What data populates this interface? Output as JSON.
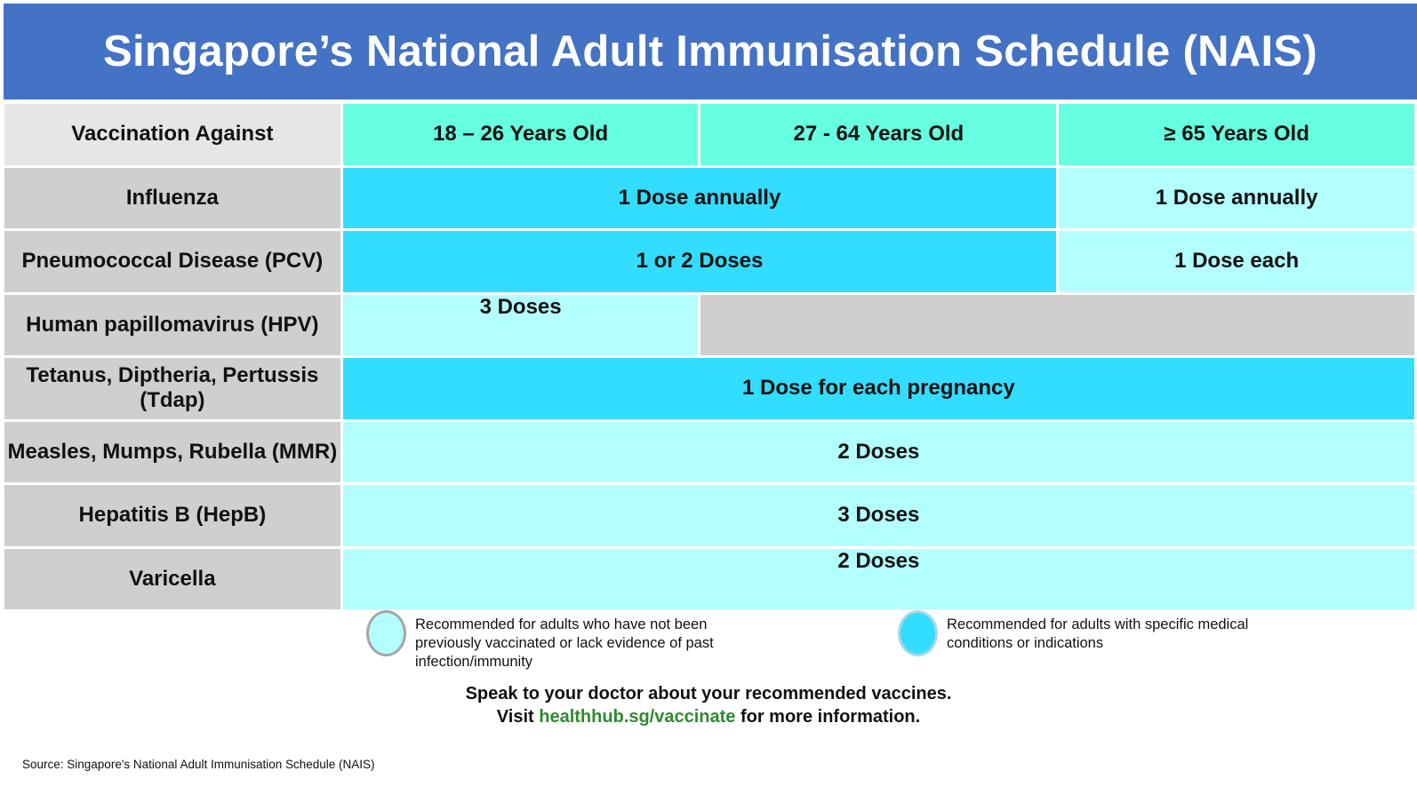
{
  "title": "Singapore’s National Adult Immunisation Schedule (NAIS)",
  "table": {
    "header": {
      "label": "Vaccination Against",
      "age_groups": [
        "18 – 26 Years Old",
        "27 - 64 Years Old",
        "≥ 65 Years Old"
      ]
    },
    "rows": [
      {
        "vaccine": "Influenza",
        "cells": [
          "1 Dose annually",
          "1 Dose annually"
        ]
      },
      {
        "vaccine": "Pneumococcal Disease (PCV)",
        "cells": [
          "1 or 2 Doses",
          "1 Dose each"
        ]
      },
      {
        "vaccine": "Human papillomavirus (HPV)",
        "cells": [
          "3 Doses"
        ]
      },
      {
        "vaccine": "Tetanus, Diptheria, Pertussis (Tdap)",
        "cells": [
          "1 Dose for each pregnancy"
        ]
      },
      {
        "vaccine": "Measles, Mumps, Rubella (MMR)",
        "cells": [
          "2 Doses"
        ]
      },
      {
        "vaccine": "Hepatitis B (HepB)",
        "cells": [
          "3 Doses"
        ]
      },
      {
        "vaccine": "Varicella",
        "cells": [
          "2 Doses"
        ]
      }
    ]
  },
  "legend": [
    {
      "color": "#B3FFFF",
      "text": "Recommended for adults who have not been previously vaccinated or lack evidence of past infection/immunity"
    },
    {
      "color": "#33DDFF",
      "text": "Recommended for adults with specific medical conditions or indications"
    }
  ],
  "footer": {
    "line1": "Speak to your doctor about your recommended vaccines.",
    "line2_prefix": "Visit ",
    "link": "healthhub.sg/vaccinate",
    "line2_suffix": " for more information."
  },
  "source": "Source: Singapore's National Adult Immunisation Schedule (NAIS)",
  "colors": {
    "title_bg": "#4472C4",
    "header_age_bg": "#66FFE0",
    "specific_conditions": "#33DDFF",
    "not_vaccinated": "#B3FFFF",
    "not_recommended": "#D0CECE",
    "link": "#2E8B2E"
  }
}
